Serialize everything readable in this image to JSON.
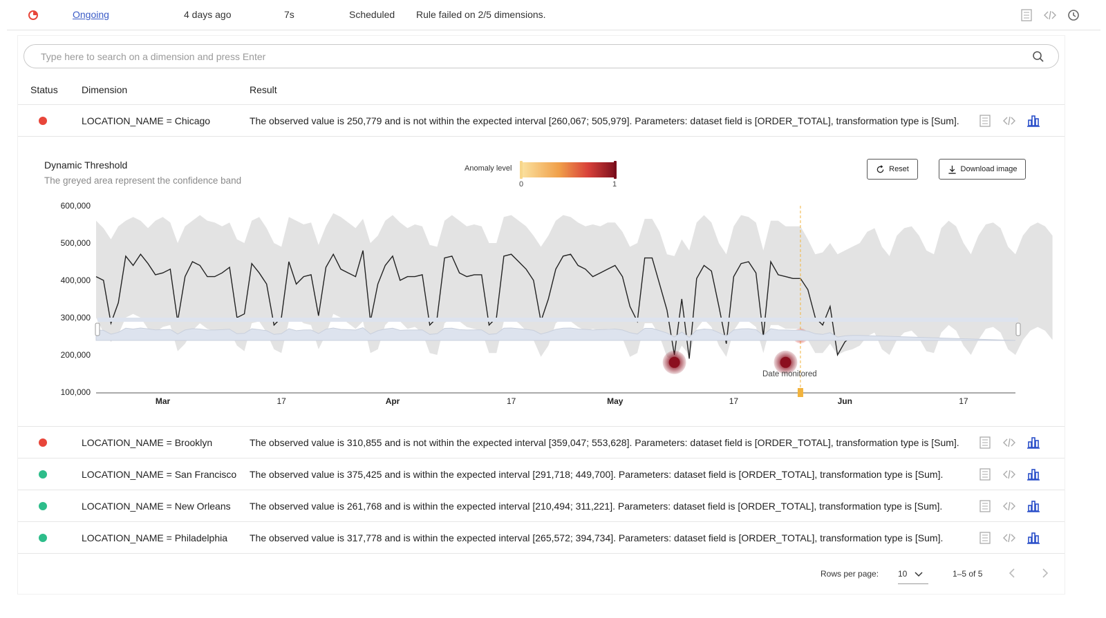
{
  "run": {
    "status_link": "Ongoing",
    "time_ago": "4 days ago",
    "duration": "7s",
    "trigger": "Scheduled",
    "message": "Rule failed on 2/5 dimensions."
  },
  "search": {
    "placeholder": "Type here to search on a dimension and press Enter"
  },
  "table": {
    "headers": {
      "status": "Status",
      "dimension": "Dimension",
      "result": "Result"
    },
    "rows": [
      {
        "status": "failed",
        "status_color": "#e8463a",
        "dimension": "LOCATION_NAME = Chicago",
        "result": "The observed value is 250,779 and is not within the expected interval [260,067; 505,979]. Parameters: dataset field is [ORDER_TOTAL], transformation type is [Sum]."
      },
      {
        "status": "failed",
        "status_color": "#e8463a",
        "dimension": "LOCATION_NAME = Brooklyn",
        "result": "The observed value is 310,855 and is not within the expected interval [359,047; 553,628]. Parameters: dataset field is [ORDER_TOTAL], transformation type is [Sum]."
      },
      {
        "status": "passed",
        "status_color": "#2dbd8a",
        "dimension": "LOCATION_NAME = San Francisco",
        "result": "The observed value is 375,425 and is within the expected interval [291,718; 449,700]. Parameters: dataset field is [ORDER_TOTAL], transformation type is [Sum]."
      },
      {
        "status": "passed",
        "status_color": "#2dbd8a",
        "dimension": "LOCATION_NAME = New Orleans",
        "result": "The observed value is 261,768 and is within the expected interval [210,494; 311,221]. Parameters: dataset field is [ORDER_TOTAL], transformation type is [Sum]."
      },
      {
        "status": "passed",
        "status_color": "#2dbd8a",
        "dimension": "LOCATION_NAME = Philadelphia",
        "result": "The observed value is 317,778 and is within the expected interval [265,572; 394,734]. Parameters: dataset field is [ORDER_TOTAL], transformation type is [Sum]."
      }
    ]
  },
  "chart_panel": {
    "title": "Dynamic Threshold",
    "subtitle": "The greyed area represent the confidence band",
    "legend_label": "Anomaly level",
    "legend_min": "0",
    "legend_max": "1",
    "reset_label": "Reset",
    "download_label": "Download image",
    "monitored_label": "Date monitored"
  },
  "chart_data": {
    "type": "line",
    "title": "Dynamic Threshold",
    "subtitle": "The greyed area represent the confidence band",
    "x_start": "2024-02-21",
    "x_end": "2024-06-24",
    "monitored_date": "2024-05-26",
    "ylim": [
      100000,
      600000
    ],
    "y_ticks": [
      "600,000",
      "500,000",
      "400,000",
      "300,000",
      "200,000",
      "100,000"
    ],
    "x_ticks": [
      {
        "date": "2024-03-01",
        "label": "Mar",
        "bold": true
      },
      {
        "date": "2024-03-17",
        "label": "17",
        "bold": false
      },
      {
        "date": "2024-04-01",
        "label": "Apr",
        "bold": true
      },
      {
        "date": "2024-04-17",
        "label": "17",
        "bold": false
      },
      {
        "date": "2024-05-01",
        "label": "May",
        "bold": true
      },
      {
        "date": "2024-05-17",
        "label": "17",
        "bold": false
      },
      {
        "date": "2024-06-01",
        "label": "Jun",
        "bold": true
      },
      {
        "date": "2024-06-17",
        "label": "17",
        "bold": false
      }
    ],
    "series": [
      {
        "name": "observed",
        "values": [
          410000,
          400000,
          285000,
          340000,
          465000,
          440000,
          470000,
          445000,
          415000,
          420000,
          430000,
          290000,
          410000,
          450000,
          440000,
          410000,
          410000,
          420000,
          435000,
          300000,
          310000,
          445000,
          420000,
          390000,
          280000,
          300000,
          450000,
          390000,
          410000,
          415000,
          305000,
          435000,
          470000,
          430000,
          420000,
          410000,
          480000,
          290000,
          390000,
          440000,
          465000,
          400000,
          410000,
          410000,
          415000,
          280000,
          300000,
          460000,
          465000,
          420000,
          410000,
          415000,
          415000,
          280000,
          300000,
          465000,
          470000,
          450000,
          430000,
          400000,
          290000,
          350000,
          430000,
          465000,
          470000,
          440000,
          430000,
          410000,
          420000,
          430000,
          440000,
          410000,
          330000,
          290000,
          460000,
          460000,
          390000,
          320000,
          200000,
          350000,
          190000,
          405000,
          440000,
          425000,
          330000,
          230000,
          410000,
          445000,
          450000,
          420000,
          250000,
          450000,
          415000,
          410000,
          405000,
          405000,
          375000,
          300000,
          280000,
          330000,
          200000,
          235000,
          250000,
          251000
        ]
      },
      {
        "name": "confidence_band_upper",
        "values": [
          560000,
          540000,
          510000,
          545000,
          560000,
          570000,
          560000,
          540000,
          560000,
          570000,
          555000,
          500000,
          545000,
          560000,
          575000,
          560000,
          555000,
          545000,
          555000,
          510000,
          500000,
          560000,
          570000,
          540000,
          500000,
          490000,
          570000,
          560000,
          550000,
          555000,
          495000,
          545000,
          580000,
          570000,
          555000,
          540000,
          565000,
          500000,
          520000,
          560000,
          575000,
          555000,
          540000,
          550000,
          545000,
          495000,
          490000,
          560000,
          575000,
          560000,
          545000,
          550000,
          545000,
          500000,
          500000,
          570000,
          575000,
          560000,
          545000,
          520000,
          490000,
          520000,
          560000,
          575000,
          570000,
          555000,
          545000,
          550000,
          545000,
          555000,
          555000,
          530000,
          490000,
          500000,
          565000,
          565000,
          530000,
          470000,
          465000,
          510000,
          480000,
          555000,
          575000,
          555000,
          500000,
          470000,
          545000,
          575000,
          570000,
          555000,
          480000,
          560000,
          560000,
          545000,
          545000,
          545000,
          510000,
          470000,
          475000,
          500000,
          470000,
          480000,
          490000,
          500000,
          530000,
          540000,
          490000,
          465000,
          520000,
          540000,
          545000,
          520000,
          480000,
          470000,
          540000,
          560000,
          545000,
          500000,
          470000,
          520000,
          550000,
          555000,
          540000,
          490000,
          470000,
          520000,
          545000,
          555000,
          545000,
          520000
        ]
      },
      {
        "name": "confidence_band_lower",
        "values": [
          300000,
          260000,
          235000,
          255000,
          300000,
          310000,
          300000,
          270000,
          260000,
          275000,
          280000,
          210000,
          230000,
          265000,
          285000,
          270000,
          265000,
          255000,
          265000,
          225000,
          210000,
          285000,
          290000,
          260000,
          215000,
          205000,
          290000,
          300000,
          285000,
          280000,
          215000,
          255000,
          310000,
          300000,
          285000,
          270000,
          290000,
          205000,
          215000,
          280000,
          300000,
          290000,
          270000,
          275000,
          260000,
          205000,
          200000,
          285000,
          300000,
          290000,
          275000,
          270000,
          265000,
          205000,
          205000,
          290000,
          300000,
          285000,
          265000,
          240000,
          195000,
          225000,
          285000,
          300000,
          290000,
          275000,
          265000,
          270000,
          265000,
          270000,
          270000,
          245000,
          195000,
          205000,
          285000,
          285000,
          250000,
          195000,
          185000,
          225000,
          200000,
          270000,
          295000,
          275000,
          225000,
          195000,
          265000,
          295000,
          290000,
          275000,
          205000,
          280000,
          280000,
          270000,
          270000,
          270000,
          240000,
          205000,
          205000,
          230000,
          200000,
          210000,
          215000,
          225000,
          250000,
          260000,
          215000,
          200000,
          240000,
          260000,
          265000,
          245000,
          210000,
          205000,
          260000,
          280000,
          265000,
          225000,
          200000,
          240000,
          270000,
          275000,
          260000,
          215000,
          200000,
          240000,
          265000,
          275000,
          265000,
          240000
        ]
      }
    ],
    "anomalies": [
      {
        "date": "2024-05-09",
        "value": 180000,
        "level": 1.0
      },
      {
        "date": "2024-05-24",
        "value": 180000,
        "level": 0.9
      },
      {
        "date": "2024-05-26",
        "value": 251000,
        "level": 0.6
      }
    ],
    "colors": {
      "band": "#e3e3e3",
      "line": "#222222",
      "anomaly_high": "#8b0f1e",
      "anomaly_mid": "#d9423a",
      "monitored": "#f2b33d",
      "navigator": "#dde3ee"
    }
  },
  "footer": {
    "rows_per_page_label": "Rows per page:",
    "rows_per_page_value": "10",
    "range": "1–5 of 5"
  }
}
